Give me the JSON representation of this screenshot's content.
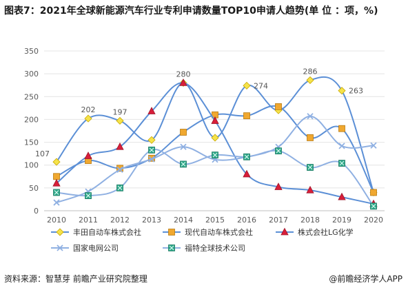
{
  "title": "图表7：2021年全球新能源汽车行业专利申请数量TOP10申请人趋势(单 位 ：项，%)",
  "source": "资料来源：智慧芽 前瞻产业研究院整理",
  "brand": "@前瞻经济学人APP",
  "chart_data": {
    "type": "line",
    "x": [
      "2010",
      "2011",
      "2012",
      "2013",
      "2014",
      "2015",
      "2016",
      "2017",
      "2018",
      "2019",
      "2020"
    ],
    "ylim": [
      0,
      350
    ],
    "yticks": [
      0,
      50,
      100,
      150,
      200,
      250,
      300,
      350
    ],
    "grid": true,
    "legend_position": "bottom",
    "series": [
      {
        "name": "丰田自动车株式会社",
        "color": "#5b8fd6",
        "marker": "diamond",
        "marker_color": "#f5e34a",
        "values": [
          107,
          202,
          197,
          155,
          280,
          160,
          274,
          220,
          286,
          263,
          40
        ],
        "labels": {
          "0": "107",
          "1": "202",
          "2": "197",
          "4": "280",
          "6": "274",
          "8": "286",
          "9": "263"
        }
      },
      {
        "name": "现代自动车株式会社",
        "color": "#5b8fd6",
        "marker": "square",
        "marker_color": "#f0a830",
        "values": [
          75,
          110,
          93,
          115,
          172,
          210,
          208,
          228,
          160,
          180,
          40
        ]
      },
      {
        "name": "株式会社LG化学",
        "color": "#5b8fd6",
        "marker": "triangle",
        "marker_color": "#d81e3a",
        "values": [
          60,
          120,
          140,
          218,
          280,
          197,
          80,
          52,
          45,
          30,
          15
        ]
      },
      {
        "name": "国家电网公司",
        "color": "#8fb0e2",
        "marker": "cross",
        "marker_color": "#8fb0e2",
        "values": [
          18,
          42,
          90,
          113,
          140,
          112,
          118,
          140,
          207,
          142,
          143
        ]
      },
      {
        "name": "福特全球技术公司",
        "color": "#8fb0e2",
        "marker": "squarex",
        "marker_color": "#2ea88a",
        "values": [
          40,
          33,
          50,
          133,
          102,
          122,
          118,
          131,
          95,
          104,
          10
        ]
      }
    ]
  }
}
